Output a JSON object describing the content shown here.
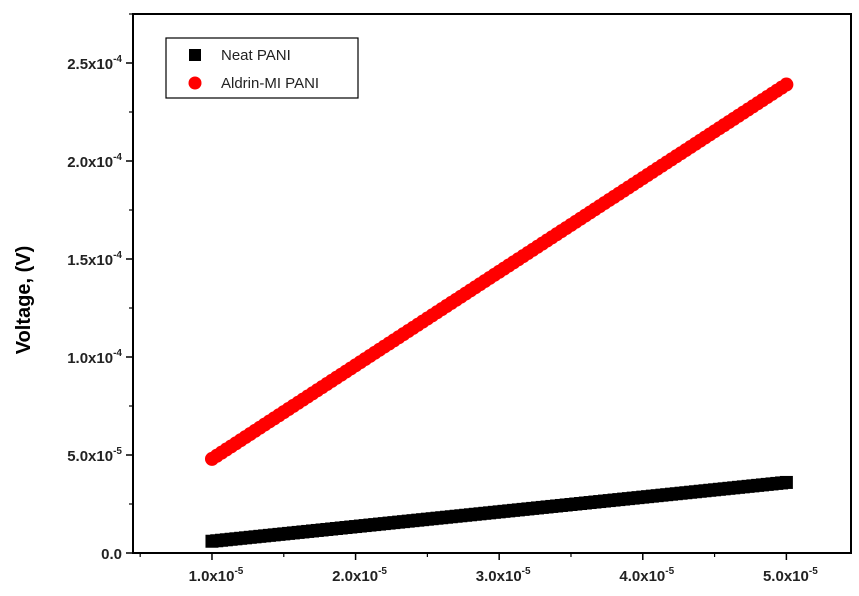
{
  "chart_data": {
    "type": "scatter",
    "title": "",
    "xlabel": "",
    "ylabel": "Voltage, (V)",
    "xlim": [
      4.5e-06,
      5.45e-05
    ],
    "ylim": [
      0,
      0.000275
    ],
    "x_ticks": [
      1e-05,
      2e-05,
      3e-05,
      4e-05,
      5e-05
    ],
    "x_tick_labels": [
      "1.0x10",
      "2.0x10",
      "3.0x10",
      "4.0x10",
      "5.0x10"
    ],
    "x_tick_exponents": [
      "-5",
      "-5",
      "-5",
      "-5",
      "-5"
    ],
    "y_ticks": [
      0,
      5e-05,
      0.0001,
      0.00015,
      0.0002,
      0.00025
    ],
    "y_tick_labels": [
      "0.0",
      "5.0x10",
      "1.0x10",
      "1.5x10",
      "2.0x10",
      "2.5x10"
    ],
    "y_tick_exponents": [
      "",
      "-5",
      "-4",
      "-4",
      "-4",
      "-4"
    ],
    "grid": false,
    "legend_position": "top-left",
    "series": [
      {
        "name": "Neat PANI",
        "marker": "square",
        "color": "#000000",
        "x_start": 1e-05,
        "x_end": 5e-05,
        "y_start": 6e-06,
        "y_end": 3.6e-05
      },
      {
        "name": "Aldrin-MI PANI",
        "marker": "circle",
        "color": "#ff0000",
        "x_start": 1e-05,
        "x_end": 5e-05,
        "y_start": 4.8e-05,
        "y_end": 0.000239
      }
    ]
  }
}
